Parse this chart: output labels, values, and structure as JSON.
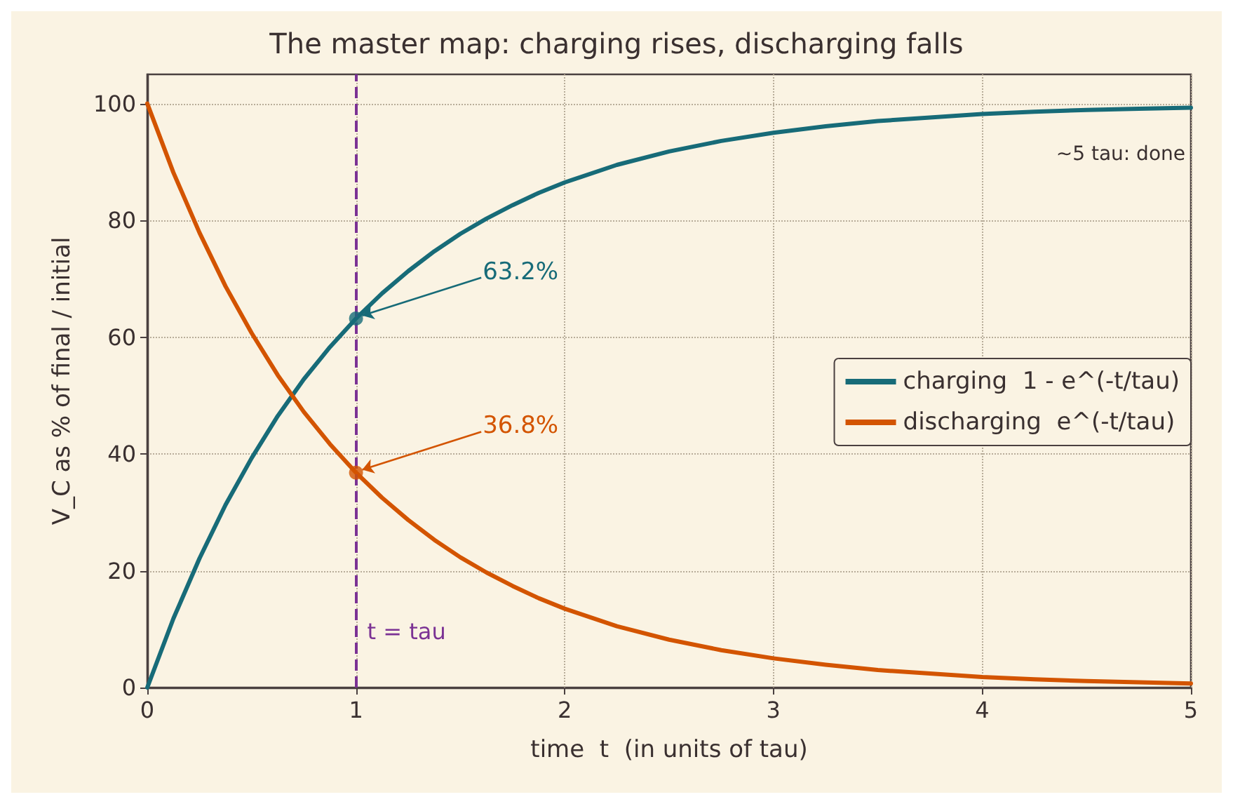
{
  "chart_data": {
    "type": "line",
    "title": "The master map: charging rises, discharging falls",
    "xlabel": "time  t  (in units of tau)",
    "ylabel": "V_C as % of final / initial",
    "x": [
      0,
      0.125,
      0.25,
      0.375,
      0.5,
      0.625,
      0.75,
      0.875,
      1,
      1.125,
      1.25,
      1.375,
      1.5,
      1.625,
      1.75,
      1.875,
      2,
      2.25,
      2.5,
      2.75,
      3,
      3.25,
      3.5,
      3.75,
      4,
      4.25,
      4.5,
      4.75,
      5
    ],
    "series": [
      {
        "name": "charging  1 - e^(-t/tau)",
        "color": "#176b78",
        "values": [
          0,
          11.8,
          22.1,
          31.3,
          39.3,
          46.5,
          52.8,
          58.3,
          63.2,
          67.5,
          71.3,
          74.7,
          77.7,
          80.3,
          82.6,
          84.7,
          86.5,
          89.5,
          91.8,
          93.6,
          95.0,
          96.1,
          97.0,
          97.6,
          98.2,
          98.6,
          98.9,
          99.1,
          99.3
        ]
      },
      {
        "name": "discharging  e^(-t/tau)",
        "color": "#d35400",
        "values": [
          100,
          88.2,
          77.9,
          68.7,
          60.7,
          53.5,
          47.2,
          41.7,
          36.8,
          32.5,
          28.7,
          25.3,
          22.3,
          19.7,
          17.4,
          15.3,
          13.5,
          10.5,
          8.2,
          6.4,
          5.0,
          3.9,
          3.0,
          2.4,
          1.8,
          1.4,
          1.1,
          0.9,
          0.7
        ]
      },
      {
        "type": "scatter",
        "color": "#176b78",
        "x": [
          1
        ],
        "values": [
          63.2
        ],
        "marker": "circle"
      },
      {
        "type": "scatter",
        "color": "#d35400",
        "x": [
          1
        ],
        "values": [
          36.8
        ],
        "marker": "circle"
      }
    ],
    "annotations": [
      {
        "text": "63.2%",
        "x": 1,
        "y": 63.2
      },
      {
        "text": "36.8%",
        "x": 1,
        "y": 36.8
      },
      "~5 tau: done"
    ],
    "ref_lines": [
      {
        "axis": "x",
        "value": 1,
        "label": "t = tau",
        "color": "#7b3294",
        "line_style": "dashed"
      }
    ],
    "xlim": [
      0,
      5
    ],
    "xticks": [
      0,
      1,
      2,
      3,
      4,
      5
    ],
    "ylim": [
      0,
      105
    ],
    "yticks": [
      0,
      20,
      40,
      60,
      80,
      100
    ],
    "grid": true,
    "legend": "right",
    "marker": "none",
    "line_style": "solid"
  }
}
